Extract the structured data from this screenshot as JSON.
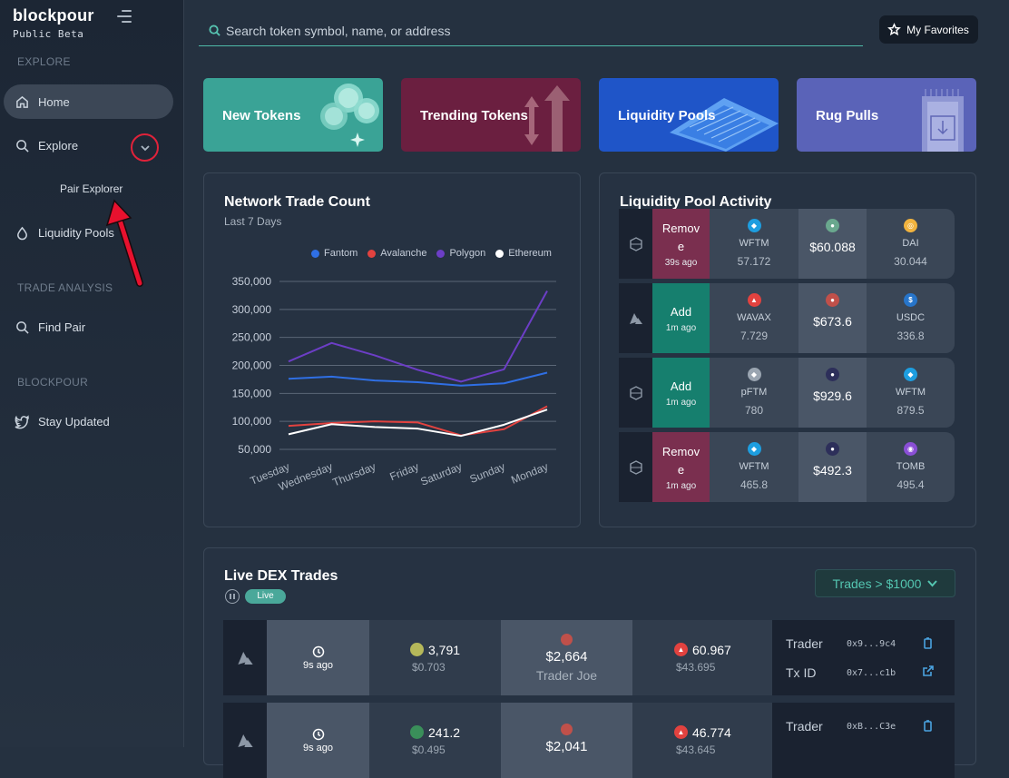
{
  "sidebar": {
    "logo": "blockpour",
    "beta": "Public Beta",
    "sections": {
      "explore": "EXPLORE",
      "trade_analysis": "TRADE ANALYSIS",
      "blockpour": "BLOCKPOUR"
    },
    "items": {
      "home": "Home",
      "explore": "Explore",
      "pair_explorer": "Pair Explorer",
      "liquidity_pools": "Liquidity Pools",
      "find_pair": "Find Pair",
      "stay_updated": "Stay Updated"
    }
  },
  "topbar": {
    "search_placeholder": "Search token symbol, name, or address",
    "favorites": "My Favorites"
  },
  "categories": [
    "New Tokens",
    "Trending Tokens",
    "Liquidity Pools",
    "Rug Pulls"
  ],
  "network_panel": {
    "title": "Network Trade Count",
    "subtitle": "Last 7 Days"
  },
  "chart_data": {
    "type": "line",
    "categories": [
      "Tuesday",
      "Wednesday",
      "Thursday",
      "Friday",
      "Saturday",
      "Sunday",
      "Monday"
    ],
    "series": [
      {
        "name": "Fantom",
        "color": "#2f6fe4",
        "values": [
          176000,
          180000,
          173000,
          170000,
          164000,
          168000,
          187000
        ]
      },
      {
        "name": "Avalanche",
        "color": "#e2423f",
        "values": [
          92000,
          97000,
          100000,
          98000,
          75000,
          86000,
          127000
        ]
      },
      {
        "name": "Polygon",
        "color": "#6c3ec6",
        "values": [
          207000,
          240000,
          218000,
          192000,
          171000,
          193000,
          333000
        ]
      },
      {
        "name": "Ethereum",
        "color": "#ffffff",
        "values": [
          77000,
          95000,
          90000,
          87000,
          74000,
          94000,
          121000
        ]
      }
    ],
    "yticks": [
      "350,000",
      "300,000",
      "250,000",
      "200,000",
      "150,000",
      "100,000",
      "50,000"
    ],
    "ylim": [
      50000,
      350000
    ],
    "grid": true,
    "legend": "top-right"
  },
  "lp_panel": {
    "title": "Liquidity Pool Activity",
    "rows": [
      {
        "action": "Remove",
        "time": "39s ago",
        "token_a": "WFTM",
        "amount_a": "57.172",
        "value": "$60.088",
        "token_b": "DAI",
        "amount_b": "30.044"
      },
      {
        "action": "Add",
        "time": "1m ago",
        "token_a": "WAVAX",
        "amount_a": "7.729",
        "value": "$673.6",
        "token_b": "USDC",
        "amount_b": "336.8"
      },
      {
        "action": "Add",
        "time": "1m ago",
        "token_a": "pFTM",
        "amount_a": "780",
        "value": "$929.6",
        "token_b": "WFTM",
        "amount_b": "879.5"
      },
      {
        "action": "Remove",
        "time": "1m ago",
        "token_a": "WFTM",
        "amount_a": "465.8",
        "value": "$492.3",
        "token_b": "TOMB",
        "amount_b": "495.4"
      }
    ]
  },
  "live_panel": {
    "title": "Live DEX Trades",
    "live": "Live",
    "filter": "Trades > $1000",
    "trader_label": "Trader",
    "tx_label": "Tx ID",
    "rows": [
      {
        "time": "9s ago",
        "in_amount": "3,791",
        "in_usd": "$0.703",
        "value": "$2,664",
        "dex": "Trader Joe",
        "out_amount": "60.967",
        "out_usd": "$43.695",
        "trader": "0x9...9c4",
        "tx": "0x7...c1b"
      },
      {
        "time": "9s ago",
        "in_amount": "241.2",
        "in_usd": "$0.495",
        "value": "$2,041",
        "dex": "",
        "out_amount": "46.774",
        "out_usd": "$43.645",
        "trader": "0xB...C3e",
        "tx": ""
      }
    ]
  }
}
